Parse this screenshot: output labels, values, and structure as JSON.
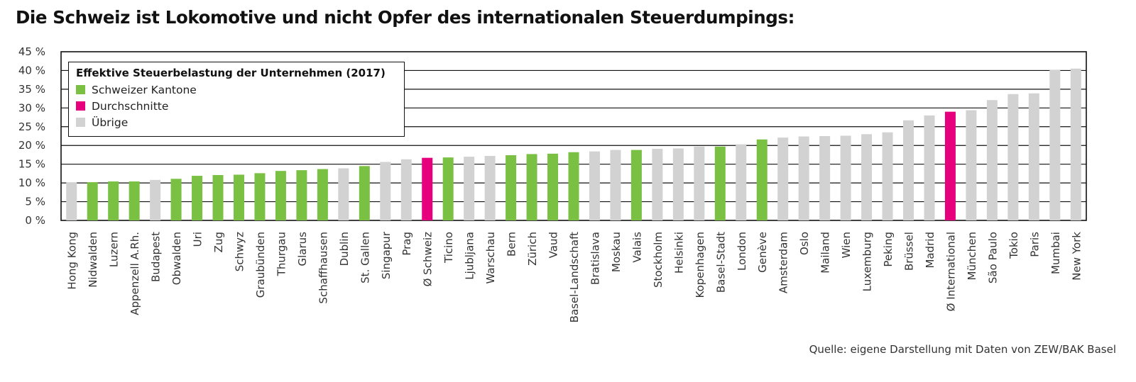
{
  "title": "Die Schweiz ist Lokomotive und nicht Opfer des internationalen Steuerdumpings:",
  "source": "Quelle: eigene Darstellung mit Daten von ZEW/BAK Basel",
  "colors": {
    "Schweizer Kantone": "#7ac143",
    "Durchschnitte": "#e6007e",
    "Übrige": "#d2d2d2"
  },
  "legend": {
    "title": "Effektive Steuerbelastung der Unternehmen (2017)",
    "items": [
      {
        "label": "Schweizer Kantone",
        "group": "Schweizer Kantone"
      },
      {
        "label": "Durchschnitte",
        "group": "Durchschnitte"
      },
      {
        "label": "Übrige",
        "group": "Übrige"
      }
    ]
  },
  "chart_data": {
    "type": "bar",
    "ylim": [
      0,
      45
    ],
    "yticks": [
      "0 %",
      "5 %",
      "10 %",
      "15 %",
      "20 %",
      "25 %",
      "30 %",
      "35 %",
      "40 %",
      "45 %"
    ],
    "grid": true,
    "categories": [
      "Hong Kong",
      "Nidwalden",
      "Luzern",
      "Appenzell A.Rh.",
      "Budapest",
      "Obwalden",
      "Uri",
      "Zug",
      "Schwyz",
      "Graubünden",
      "Thurgau",
      "Glarus",
      "Schaffhausen",
      "Dublin",
      "St. Gallen",
      "Singapur",
      "Prag",
      "Ø Schweiz",
      "Ticino",
      "Ljubljana",
      "Warschau",
      "Bern",
      "Zürich",
      "Vaud",
      "Basel-Landschaft",
      "Bratislava",
      "Moskau",
      "Valais",
      "Stockholm",
      "Helsinki",
      "Kopenhagen",
      "Basel-Stadt",
      "London",
      "Genève",
      "Amsterdam",
      "Oslo",
      "Mailand",
      "Wien",
      "Luxemburg",
      "Peking",
      "Brüssel",
      "Madrid",
      "Ø International",
      "München",
      "São Paulo",
      "Tokio",
      "Paris",
      "Mumbai",
      "New York"
    ],
    "values": [
      10.1,
      10.2,
      10.4,
      10.4,
      10.8,
      11.1,
      11.9,
      12.1,
      12.2,
      12.6,
      13.2,
      13.4,
      13.7,
      13.9,
      14.5,
      15.6,
      16.3,
      16.7,
      16.8,
      17.0,
      17.2,
      17.4,
      17.7,
      17.8,
      18.2,
      18.4,
      18.8,
      18.8,
      19.1,
      19.2,
      19.7,
      19.7,
      20.3,
      21.6,
      22.1,
      22.4,
      22.5,
      22.6,
      23.0,
      23.5,
      26.7,
      28.0,
      29.0,
      29.4,
      32.1,
      33.7,
      33.9,
      40.2,
      40.5
    ],
    "groups": [
      "Übrige",
      "Schweizer Kantone",
      "Schweizer Kantone",
      "Schweizer Kantone",
      "Übrige",
      "Schweizer Kantone",
      "Schweizer Kantone",
      "Schweizer Kantone",
      "Schweizer Kantone",
      "Schweizer Kantone",
      "Schweizer Kantone",
      "Schweizer Kantone",
      "Schweizer Kantone",
      "Übrige",
      "Schweizer Kantone",
      "Übrige",
      "Übrige",
      "Durchschnitte",
      "Schweizer Kantone",
      "Übrige",
      "Übrige",
      "Schweizer Kantone",
      "Schweizer Kantone",
      "Schweizer Kantone",
      "Schweizer Kantone",
      "Übrige",
      "Übrige",
      "Schweizer Kantone",
      "Übrige",
      "Übrige",
      "Übrige",
      "Schweizer Kantone",
      "Übrige",
      "Schweizer Kantone",
      "Übrige",
      "Übrige",
      "Übrige",
      "Übrige",
      "Übrige",
      "Übrige",
      "Übrige",
      "Übrige",
      "Durchschnitte",
      "Übrige",
      "Übrige",
      "Übrige",
      "Übrige",
      "Übrige",
      "Übrige"
    ],
    "legend_position": "top-left"
  }
}
